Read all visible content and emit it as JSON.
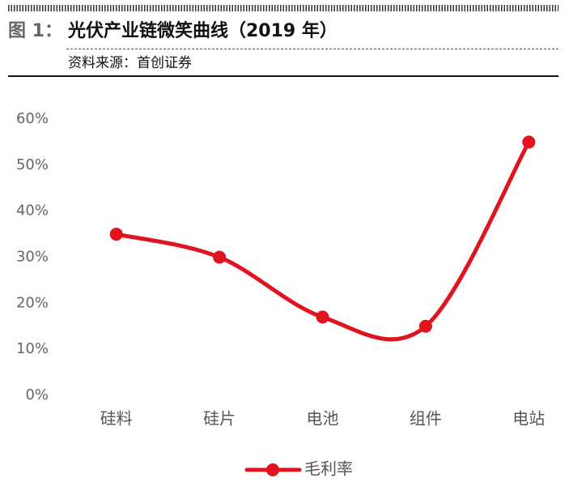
{
  "chart_data": {
    "type": "line",
    "figure_label": "图 1：",
    "title": "光伏产业链微笑曲线（2019 年）",
    "subtitle": "资料来源：首创证券",
    "categories": [
      "硅料",
      "硅片",
      "电池",
      "组件",
      "电站"
    ],
    "series": [
      {
        "name": "毛利率",
        "color": "#e0141e",
        "values": [
          35,
          30,
          17,
          15,
          55
        ]
      }
    ],
    "ylim": [
      0,
      60
    ],
    "yticks": [
      {
        "value": 0,
        "label": "0%"
      },
      {
        "value": 10,
        "label": "10%"
      },
      {
        "value": 20,
        "label": "20%"
      },
      {
        "value": 30,
        "label": "30%"
      },
      {
        "value": 40,
        "label": "40%"
      },
      {
        "value": 50,
        "label": "50%"
      },
      {
        "value": 60,
        "label": "60%"
      }
    ],
    "smooth": true,
    "legend": "bottom"
  }
}
